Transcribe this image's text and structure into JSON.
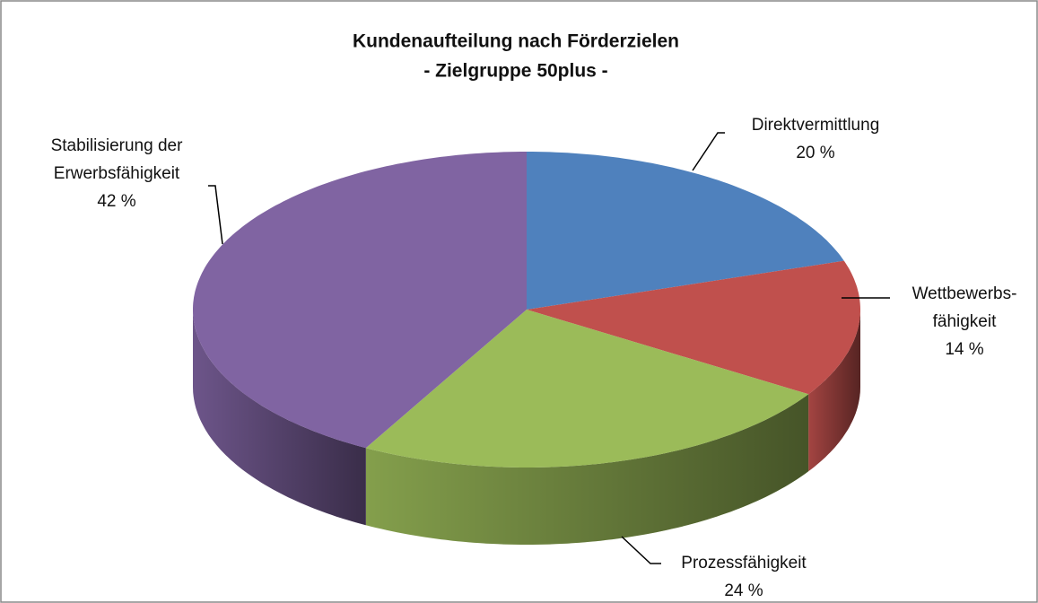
{
  "chart_data": {
    "type": "pie",
    "title": "Kundenaufteilung nach Förderzielen",
    "subtitle": "- Zielgruppe 50plus -",
    "categories": [
      "Direktvermittlung",
      "Wettbewerbs-\nfähigkeit",
      "Prozessfähigkeit",
      "Stabilisierung der\nErwerbsfähigkeit"
    ],
    "values": [
      20,
      14,
      24,
      42
    ],
    "value_labels": [
      "20 %",
      "14 %",
      "24 %",
      "42 %"
    ],
    "colors": [
      "#4f81bd",
      "#c0504d",
      "#9bbb59",
      "#8064a2"
    ]
  }
}
